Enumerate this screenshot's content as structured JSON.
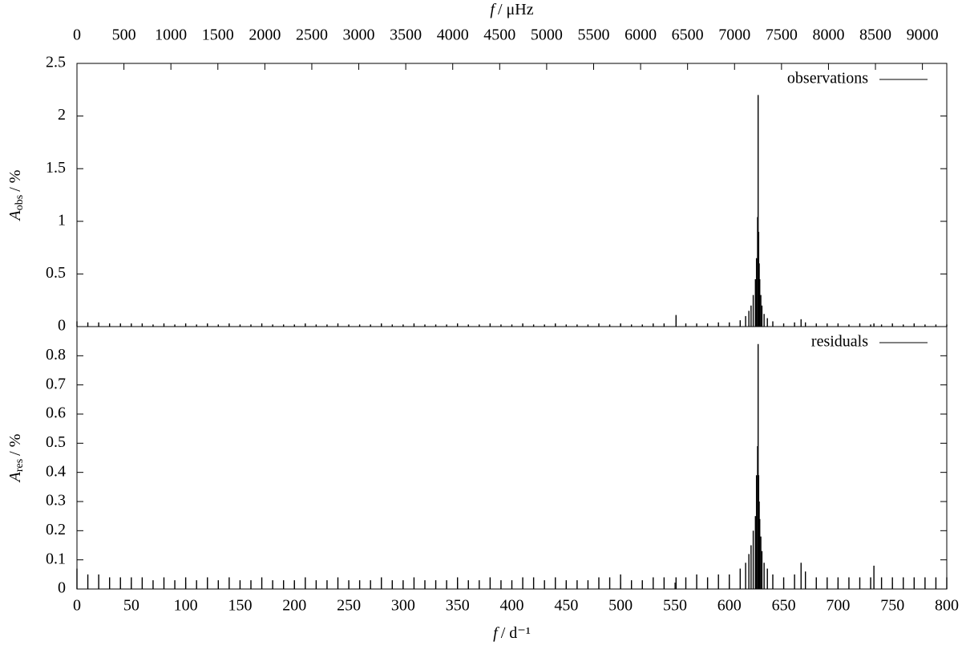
{
  "chart_data": [
    {
      "type": "impulse",
      "x2label": {
        "symbol": "f",
        "unit": "/ μHz"
      },
      "x2lim": [
        0,
        9259.26
      ],
      "x2ticks": [
        0,
        500,
        1000,
        1500,
        2000,
        2500,
        3000,
        3500,
        4000,
        4500,
        5000,
        5500,
        6000,
        6500,
        7000,
        7500,
        8000,
        8500,
        9000
      ],
      "ylabel": {
        "symbol": "A",
        "subscript": "obs",
        "unit": "/ %"
      },
      "xlim": [
        0,
        800
      ],
      "ylim": [
        0,
        2.5
      ],
      "yticks": [
        0,
        0.5,
        1,
        1.5,
        2,
        2.5
      ],
      "x": [
        0,
        10,
        20,
        30,
        40,
        50,
        60,
        70,
        80,
        90,
        100,
        110,
        120,
        130,
        140,
        150,
        160,
        170,
        180,
        190,
        200,
        210,
        220,
        230,
        240,
        250,
        260,
        270,
        280,
        290,
        300,
        310,
        320,
        330,
        340,
        350,
        360,
        370,
        380,
        390,
        400,
        410,
        420,
        430,
        440,
        450,
        460,
        470,
        480,
        490,
        500,
        510,
        520,
        530,
        540,
        551,
        560,
        570,
        580,
        590,
        600,
        610,
        615,
        618,
        620,
        622,
        624,
        625,
        626,
        626.5,
        627,
        627.5,
        628,
        629,
        630,
        632,
        635,
        640,
        650,
        660,
        666,
        670,
        680,
        690,
        700,
        710,
        720,
        730,
        733,
        740,
        750,
        760,
        770,
        780,
        790,
        800
      ],
      "series": [
        {
          "name": "observations",
          "color": "#000000",
          "values": [
            0.05,
            0.04,
            0.04,
            0.03,
            0.03,
            0.03,
            0.03,
            0.02,
            0.03,
            0.02,
            0.03,
            0.02,
            0.03,
            0.02,
            0.03,
            0.02,
            0.02,
            0.03,
            0.02,
            0.02,
            0.02,
            0.03,
            0.02,
            0.02,
            0.03,
            0.02,
            0.02,
            0.02,
            0.03,
            0.02,
            0.02,
            0.03,
            0.02,
            0.02,
            0.02,
            0.03,
            0.02,
            0.02,
            0.03,
            0.02,
            0.02,
            0.03,
            0.02,
            0.02,
            0.03,
            0.02,
            0.02,
            0.02,
            0.03,
            0.02,
            0.03,
            0.02,
            0.02,
            0.03,
            0.03,
            0.11,
            0.03,
            0.03,
            0.03,
            0.04,
            0.04,
            0.06,
            0.1,
            0.15,
            0.2,
            0.3,
            0.45,
            0.65,
            1.04,
            2.2,
            0.9,
            0.6,
            0.45,
            0.3,
            0.2,
            0.12,
            0.08,
            0.05,
            0.03,
            0.04,
            0.07,
            0.04,
            0.03,
            0.03,
            0.03,
            0.02,
            0.03,
            0.02,
            0.03,
            0.02,
            0.03,
            0.02,
            0.03,
            0.02,
            0.02,
            0.02
          ]
        }
      ]
    },
    {
      "type": "impulse",
      "xlabel": {
        "symbol": "f",
        "unit": "/ d⁻¹"
      },
      "xlim": [
        0,
        800
      ],
      "xticks": [
        0,
        50,
        100,
        150,
        200,
        250,
        300,
        350,
        400,
        450,
        500,
        550,
        600,
        650,
        700,
        750,
        800
      ],
      "ylabel": {
        "symbol": "A",
        "subscript": "res",
        "unit": "/ %"
      },
      "ylim": [
        0,
        0.9
      ],
      "yticks": [
        0,
        0.1,
        0.2,
        0.3,
        0.4,
        0.5,
        0.6,
        0.7,
        0.8
      ],
      "x": [
        0,
        10,
        20,
        30,
        40,
        50,
        60,
        70,
        80,
        90,
        100,
        110,
        120,
        130,
        140,
        150,
        160,
        170,
        180,
        190,
        200,
        210,
        220,
        230,
        240,
        250,
        260,
        270,
        280,
        290,
        300,
        310,
        320,
        330,
        340,
        350,
        360,
        370,
        380,
        390,
        400,
        410,
        420,
        430,
        440,
        450,
        460,
        470,
        480,
        490,
        500,
        510,
        520,
        530,
        540,
        551,
        560,
        570,
        580,
        590,
        600,
        610,
        615,
        618,
        620,
        622,
        624,
        625,
        626,
        626.5,
        627,
        627.5,
        628,
        629,
        630,
        632,
        635,
        640,
        650,
        660,
        666,
        670,
        680,
        690,
        700,
        710,
        720,
        730,
        733,
        740,
        750,
        760,
        770,
        780,
        790,
        800
      ],
      "series": [
        {
          "name": "residuals",
          "color": "#000000",
          "values": [
            0.07,
            0.05,
            0.05,
            0.04,
            0.04,
            0.04,
            0.04,
            0.03,
            0.04,
            0.03,
            0.04,
            0.03,
            0.04,
            0.03,
            0.04,
            0.03,
            0.03,
            0.04,
            0.03,
            0.03,
            0.03,
            0.04,
            0.03,
            0.03,
            0.04,
            0.03,
            0.03,
            0.03,
            0.04,
            0.03,
            0.03,
            0.04,
            0.03,
            0.03,
            0.03,
            0.04,
            0.03,
            0.03,
            0.04,
            0.03,
            0.03,
            0.04,
            0.04,
            0.03,
            0.04,
            0.03,
            0.03,
            0.03,
            0.04,
            0.04,
            0.05,
            0.03,
            0.03,
            0.04,
            0.04,
            0.04,
            0.04,
            0.05,
            0.04,
            0.05,
            0.05,
            0.07,
            0.09,
            0.12,
            0.15,
            0.2,
            0.25,
            0.39,
            0.49,
            0.84,
            0.39,
            0.3,
            0.24,
            0.18,
            0.13,
            0.09,
            0.07,
            0.05,
            0.04,
            0.05,
            0.09,
            0.06,
            0.04,
            0.04,
            0.04,
            0.04,
            0.04,
            0.04,
            0.08,
            0.04,
            0.04,
            0.04,
            0.04,
            0.04,
            0.04,
            0.04
          ]
        }
      ]
    }
  ]
}
